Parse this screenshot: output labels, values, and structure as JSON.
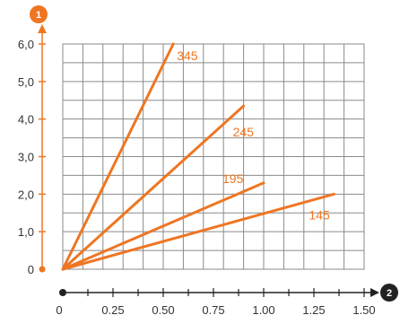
{
  "chart_data": {
    "type": "line",
    "title": "",
    "xlabel": "",
    "ylabel": "",
    "xlim": [
      0,
      1.5
    ],
    "ylim": [
      0,
      6.0
    ],
    "grid": true,
    "x_ticks": [
      "0",
      "0.25",
      "0.50",
      "0.75",
      "1.00",
      "1.25",
      "1.50"
    ],
    "y_ticks": [
      "0",
      "1,0",
      "2,0",
      "3,0",
      "4,0",
      "5,0",
      "6,0"
    ],
    "y_axis_badge": "1",
    "x_axis_badge": "2",
    "series": [
      {
        "name": "345",
        "x": [
          0,
          0.55
        ],
        "y": [
          0,
          6.0
        ]
      },
      {
        "name": "245",
        "x": [
          0,
          0.9
        ],
        "y": [
          0,
          4.35
        ]
      },
      {
        "name": "195",
        "x": [
          0,
          1.0
        ],
        "y": [
          0,
          2.3
        ]
      },
      {
        "name": "145",
        "x": [
          0,
          1.35
        ],
        "y": [
          0,
          2.0
        ]
      }
    ]
  },
  "colors": {
    "accent": "#ee7623",
    "grid": "#8a8a8a",
    "axis": "#222222",
    "plot_bg": "#ffffff"
  }
}
